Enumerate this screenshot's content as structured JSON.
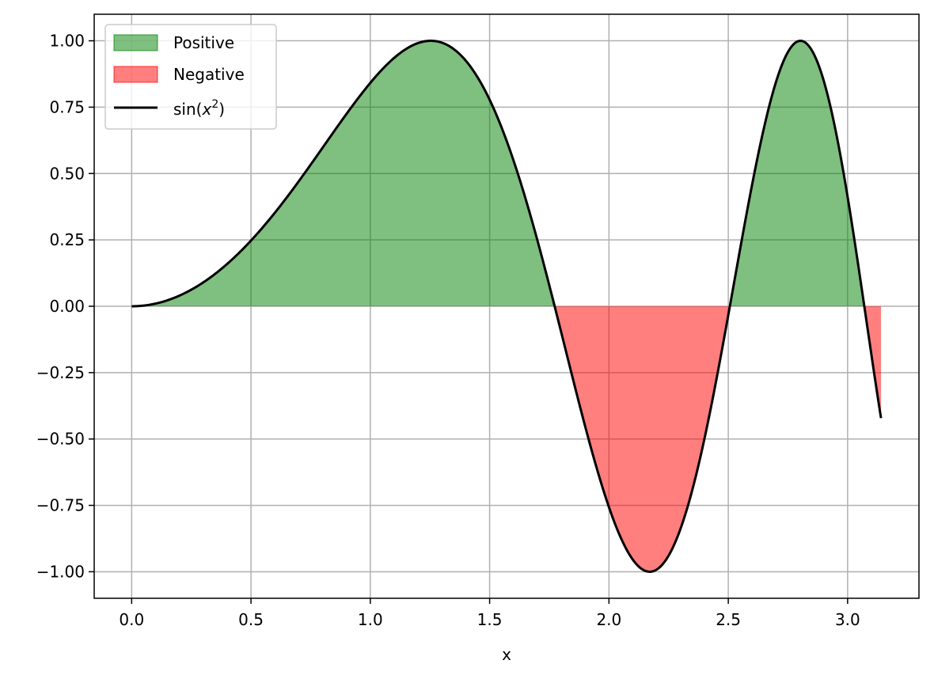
{
  "chart_data": {
    "type": "area",
    "title": "",
    "xlabel": "x",
    "ylabel": "",
    "xlim": [
      -0.157,
      3.299
    ],
    "ylim": [
      -1.1,
      1.1
    ],
    "grid": true,
    "legend_placement": "top-left",
    "x_ticks": [
      0.0,
      0.5,
      1.0,
      1.5,
      2.0,
      2.5,
      3.0
    ],
    "x_tick_labels": [
      "0.0",
      "0.5",
      "1.0",
      "1.5",
      "2.0",
      "2.5",
      "3.0"
    ],
    "y_ticks": [
      1.0,
      0.75,
      0.5,
      0.25,
      0.0,
      -0.25,
      -0.5,
      -0.75,
      -1.0
    ],
    "y_tick_labels": [
      "1.00",
      "0.75",
      "0.50",
      "0.25",
      "0.00",
      "−0.25",
      "−0.50",
      "−0.75",
      "−1.00"
    ],
    "series": [
      {
        "name": "sin(x²)",
        "kind": "line",
        "color": "#000000",
        "x": [
          0.0,
          0.25,
          0.5,
          0.75,
          1.0,
          1.25,
          1.5,
          1.75,
          1.77,
          2.0,
          2.17,
          2.25,
          2.5,
          2.75,
          2.8,
          3.0,
          3.07,
          3.14
        ],
        "y": [
          0.0,
          0.062,
          0.247,
          0.533,
          0.841,
          1.0,
          0.778,
          0.08,
          0.0,
          -0.757,
          -1.0,
          -0.947,
          -0.033,
          0.96,
          1.0,
          0.412,
          0.0,
          -0.432
        ]
      },
      {
        "name": "Positive",
        "kind": "fill",
        "color": "#008000",
        "opacity": 0.5,
        "where": "y > 0"
      },
      {
        "name": "Negative",
        "kind": "fill",
        "color": "#ff0000",
        "opacity": 0.5,
        "where": "y < 0"
      }
    ],
    "legend": [
      {
        "label": "Positive",
        "kind": "patch",
        "color": "#008000"
      },
      {
        "label": "Negative",
        "kind": "patch",
        "color": "#ff0000"
      },
      {
        "label_prefix": "sin(",
        "label_var": "x",
        "label_exp": "2",
        "label_suffix": ")",
        "kind": "line",
        "color": "#000000"
      }
    ]
  }
}
